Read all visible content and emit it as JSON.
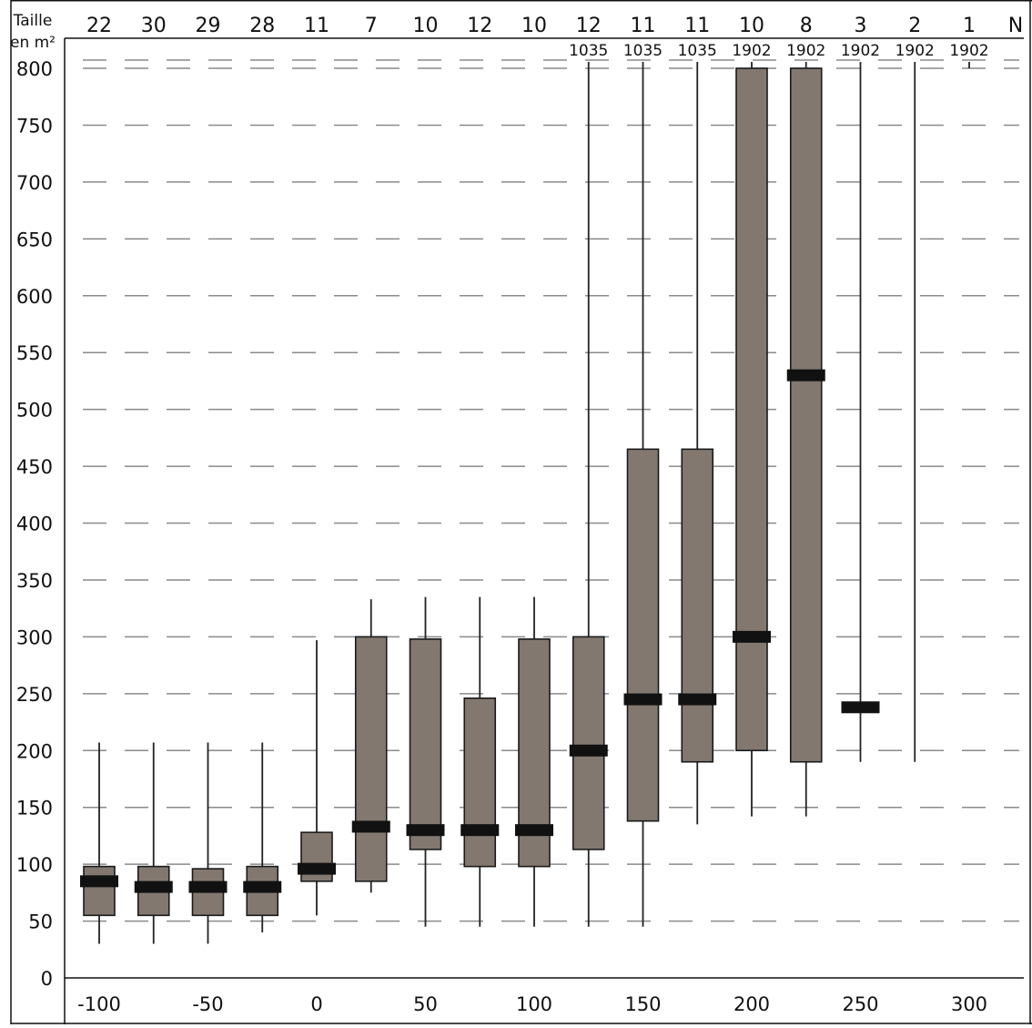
{
  "chart_data": {
    "type": "box",
    "ylabel_line1": "Taille",
    "ylabel_line2": "en m²",
    "n_label": "N",
    "ylim": [
      0,
      800
    ],
    "y_ticks": [
      0,
      50,
      100,
      150,
      200,
      250,
      300,
      350,
      400,
      450,
      500,
      550,
      600,
      650,
      700,
      750,
      800
    ],
    "x_ticks": [
      -100,
      -50,
      0,
      50,
      100,
      150,
      200,
      250,
      300
    ],
    "grid": "dashed horizontal",
    "colors": {
      "box_fill": "#827870",
      "median": "#111111",
      "grid": "#8a8a8a",
      "axis": "#111111"
    },
    "groups": [
      {
        "x": -100,
        "n": "22",
        "whisker_low": 30,
        "q1": 55,
        "median": 85,
        "q3": 98,
        "whisker_high": 207,
        "max_label": ""
      },
      {
        "x": -75,
        "n": "30",
        "whisker_low": 30,
        "q1": 55,
        "median": 80,
        "q3": 98,
        "whisker_high": 207,
        "max_label": ""
      },
      {
        "x": -50,
        "n": "29",
        "whisker_low": 30,
        "q1": 55,
        "median": 80,
        "q3": 96,
        "whisker_high": 207,
        "max_label": ""
      },
      {
        "x": -25,
        "n": "28",
        "whisker_low": 40,
        "q1": 55,
        "median": 80,
        "q3": 98,
        "whisker_high": 207,
        "max_label": ""
      },
      {
        "x": 0,
        "n": "11",
        "whisker_low": 55,
        "q1": 85,
        "median": 96,
        "q3": 128,
        "whisker_high": 297,
        "max_label": ""
      },
      {
        "x": 25,
        "n": "7",
        "whisker_low": 75,
        "q1": 85,
        "median": 133,
        "q3": 300,
        "whisker_high": 333,
        "max_label": ""
      },
      {
        "x": 50,
        "n": "10",
        "whisker_low": 45,
        "q1": 113,
        "median": 130,
        "q3": 298,
        "whisker_high": 335,
        "max_label": ""
      },
      {
        "x": 75,
        "n": "12",
        "whisker_low": 45,
        "q1": 98,
        "median": 130,
        "q3": 246,
        "whisker_high": 335,
        "max_label": ""
      },
      {
        "x": 100,
        "n": "10",
        "whisker_low": 45,
        "q1": 98,
        "median": 130,
        "q3": 298,
        "whisker_high": 335,
        "max_label": ""
      },
      {
        "x": 125,
        "n": "12",
        "whisker_low": 45,
        "q1": 113,
        "median": 200,
        "q3": 300,
        "whisker_high": 1035,
        "max_label": "1035"
      },
      {
        "x": 150,
        "n": "11",
        "whisker_low": 45,
        "q1": 138,
        "median": 245,
        "q3": 465,
        "whisker_high": 1035,
        "max_label": "1035"
      },
      {
        "x": 175,
        "n": "11",
        "whisker_low": 135,
        "q1": 190,
        "median": 245,
        "q3": 465,
        "whisker_high": 1035,
        "max_label": "1035"
      },
      {
        "x": 200,
        "n": "10",
        "whisker_low": 142,
        "q1": 200,
        "median": 300,
        "q3": 1902,
        "whisker_high": 1902,
        "max_label": "1902"
      },
      {
        "x": 225,
        "n": "8",
        "whisker_low": 142,
        "q1": 190,
        "median": 530,
        "q3": 1902,
        "whisker_high": 1902,
        "max_label": "1902"
      },
      {
        "x": 250,
        "n": "3",
        "whisker_low": 190,
        "q1": null,
        "median": 238,
        "q3": null,
        "whisker_high": 1902,
        "max_label": "1902"
      },
      {
        "x": 275,
        "n": "2",
        "whisker_low": 190,
        "q1": null,
        "median": null,
        "q3": null,
        "whisker_high": 1902,
        "max_label": "1902"
      },
      {
        "x": 300,
        "n": "1",
        "whisker_low": null,
        "q1": null,
        "median": null,
        "q3": null,
        "whisker_high": 1902,
        "max_label": "1902"
      }
    ]
  }
}
